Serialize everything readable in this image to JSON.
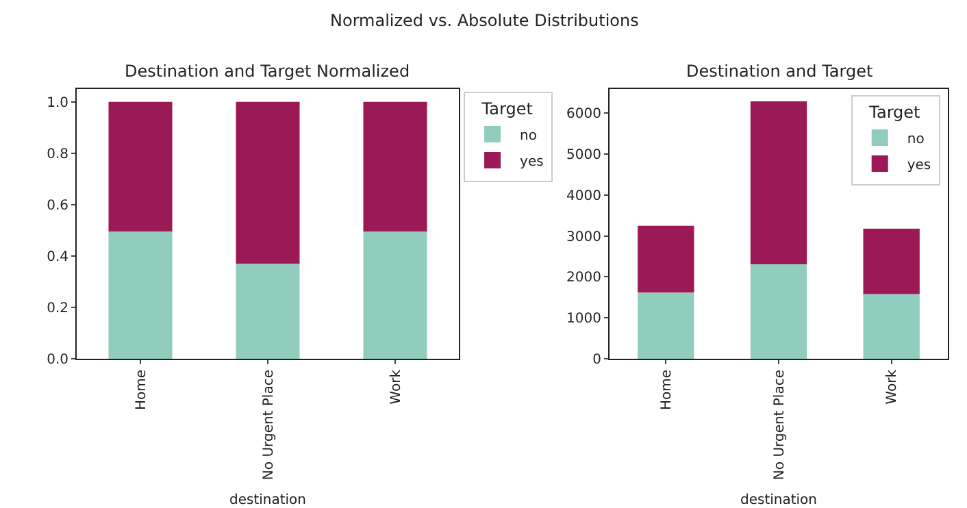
{
  "chart_data": [
    {
      "type": "bar",
      "title": "Destination and Target Normalized",
      "annotations": [
        "Normalized vs. Absolute Distributions"
      ],
      "xlabel": "destination",
      "legend_title": "Target",
      "categories": [
        "Home",
        "No Urgent Place",
        "Work"
      ],
      "stacked": true,
      "series": [
        {
          "name": "no",
          "color": "#90cdbd",
          "values": [
            0.495,
            0.37,
            0.495
          ]
        },
        {
          "name": "yes",
          "color": "#9b1955",
          "values": [
            0.505,
            0.63,
            0.505
          ]
        }
      ],
      "ylim": [
        0,
        1.05
      ],
      "yticks": [
        {
          "value": 0,
          "label": "0.0"
        },
        0.2,
        0.4,
        0.6,
        0.8,
        {
          "value": 1,
          "label": "1.0"
        }
      ],
      "legend": "right"
    },
    {
      "type": "bar",
      "title": "Destination and Target",
      "xlabel": "destination",
      "legend_title": "Target",
      "categories": [
        "Home",
        "No Urgent Place",
        "Work"
      ],
      "stacked": true,
      "series": [
        {
          "name": "no",
          "color": "#90cdbd",
          "values": [
            1620,
            2310,
            1580
          ]
        },
        {
          "name": "yes",
          "color": "#9b1955",
          "values": [
            1630,
            3980,
            1600
          ]
        }
      ],
      "ylim": [
        0,
        6590
      ],
      "yticks": [
        0,
        1000,
        2000,
        3000,
        4000,
        5000,
        6000
      ],
      "legend": "top right"
    }
  ]
}
